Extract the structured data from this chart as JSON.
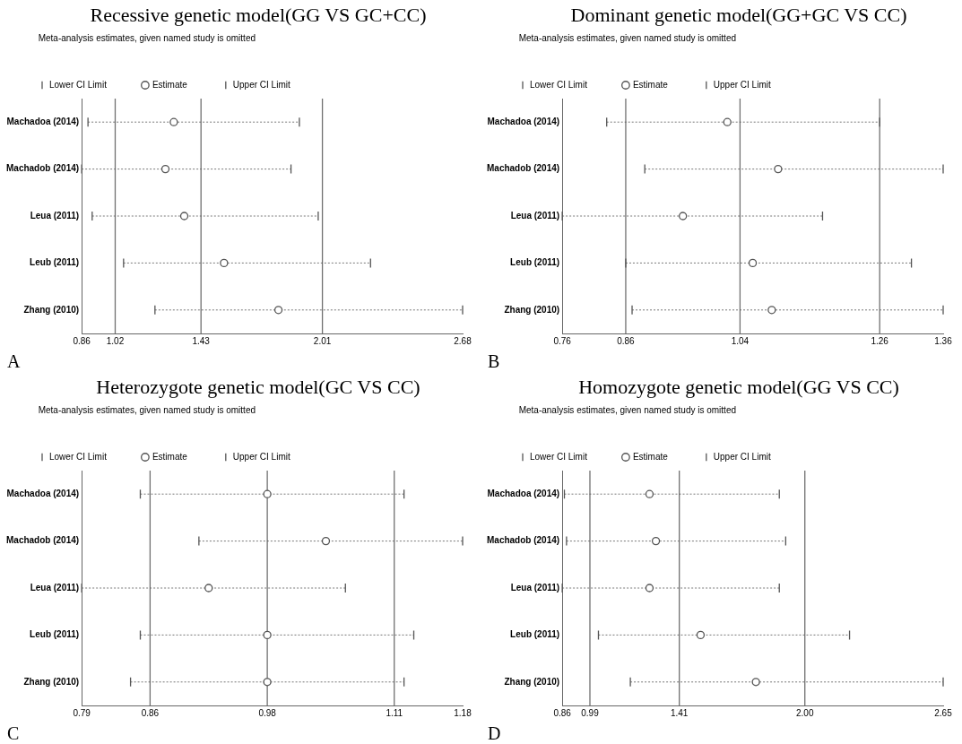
{
  "chart_data": [
    {
      "type": "scatter",
      "title": "Recessive genetic model(GG VS GC+CC)",
      "legend_title": "Meta-analysis estimates, given named study is omitted",
      "orientation": "horizontal",
      "categories": [
        "Machadoa (2014)",
        "Machadob (2014)",
        "Leua (2011)",
        "Leub (2011)",
        "Zhang (2010)"
      ],
      "series": [
        {
          "name": "Estimate",
          "color": "#555555",
          "marker": "circle",
          "values": [
            1.3,
            1.26,
            1.35,
            1.54,
            1.8
          ],
          "errors": [
            [
              0.89,
              1.9
            ],
            [
              0.86,
              1.86
            ],
            [
              0.91,
              1.99
            ],
            [
              1.06,
              2.24
            ],
            [
              1.21,
              2.68
            ]
          ]
        }
      ],
      "xlim": [
        0.86,
        2.68
      ],
      "xticks": [
        0.86,
        1.02,
        1.43,
        2.01,
        2.68
      ],
      "ref_lines": [
        {
          "axis": "x",
          "value": 1.02,
          "color": "#707070"
        },
        {
          "axis": "x",
          "value": 1.43,
          "color": "#707070"
        },
        {
          "axis": "x",
          "value": 2.01,
          "color": "#707070"
        }
      ],
      "legend": "top",
      "grid": false,
      "annotations": [
        "Lower CI Limit",
        "Upper CI Limit",
        "A"
      ]
    },
    {
      "type": "scatter",
      "title": "Dominant genetic model(GG+GC VS CC)",
      "legend_title": "Meta-analysis estimates, given named study is omitted",
      "orientation": "horizontal",
      "categories": [
        "Machadoa (2014)",
        "Machadob (2014)",
        "Leua (2011)",
        "Leub (2011)",
        "Zhang (2010)"
      ],
      "series": [
        {
          "name": "Estimate",
          "color": "#555555",
          "marker": "circle",
          "values": [
            1.02,
            1.1,
            0.95,
            1.06,
            1.09
          ],
          "errors": [
            [
              0.83,
              1.26
            ],
            [
              0.89,
              1.36
            ],
            [
              0.76,
              1.17
            ],
            [
              0.86,
              1.31
            ],
            [
              0.87,
              1.36
            ]
          ]
        }
      ],
      "xlim": [
        0.76,
        1.36
      ],
      "xticks": [
        0.76,
        0.86,
        1.04,
        1.26,
        1.36
      ],
      "ref_lines": [
        {
          "axis": "x",
          "value": 0.86,
          "color": "#707070"
        },
        {
          "axis": "x",
          "value": 1.04,
          "color": "#707070"
        },
        {
          "axis": "x",
          "value": 1.26,
          "color": "#707070"
        }
      ],
      "legend": "top",
      "grid": false,
      "annotations": [
        "Lower CI Limit",
        "Upper CI Limit",
        "B"
      ]
    },
    {
      "type": "scatter",
      "title": "Heterozygote genetic model(GC VS CC)",
      "legend_title": "Meta-analysis estimates, given named study is omitted",
      "orientation": "horizontal",
      "categories": [
        "Machadoa (2014)",
        "Machadob (2014)",
        "Leua (2011)",
        "Leub (2011)",
        "Zhang (2010)"
      ],
      "series": [
        {
          "name": "Estimate",
          "color": "#555555",
          "marker": "circle",
          "values": [
            0.98,
            1.04,
            0.92,
            0.98,
            0.98
          ],
          "errors": [
            [
              0.85,
              1.12
            ],
            [
              0.91,
              1.18
            ],
            [
              0.79,
              1.06
            ],
            [
              0.85,
              1.13
            ],
            [
              0.84,
              1.12
            ]
          ]
        }
      ],
      "xlim": [
        0.79,
        1.18
      ],
      "xticks": [
        0.79,
        0.86,
        0.98,
        1.11,
        1.18
      ],
      "ref_lines": [
        {
          "axis": "x",
          "value": 0.86,
          "color": "#707070"
        },
        {
          "axis": "x",
          "value": 0.98,
          "color": "#707070"
        },
        {
          "axis": "x",
          "value": 1.11,
          "color": "#707070"
        }
      ],
      "legend": "top",
      "grid": false,
      "annotations": [
        "Lower CI Limit",
        "Upper CI Limit",
        "C"
      ]
    },
    {
      "type": "scatter",
      "title": "Homozygote genetic model(GG VS CC)",
      "legend_title": "Meta-analysis estimates, given named study is omitted",
      "orientation": "horizontal",
      "categories": [
        "Machadoa (2014)",
        "Machadob (2014)",
        "Leua (2011)",
        "Leub (2011)",
        "Zhang (2010)"
      ],
      "series": [
        {
          "name": "Estimate",
          "color": "#555555",
          "marker": "circle",
          "values": [
            1.27,
            1.3,
            1.27,
            1.51,
            1.77
          ],
          "errors": [
            [
              0.87,
              1.88
            ],
            [
              0.88,
              1.91
            ],
            [
              0.86,
              1.88
            ],
            [
              1.03,
              2.21
            ],
            [
              1.18,
              2.65
            ]
          ]
        }
      ],
      "xlim": [
        0.86,
        2.65
      ],
      "xticks": [
        0.86,
        0.99,
        1.41,
        {
          "value": 2,
          "label": "2.00"
        },
        2.65
      ],
      "ref_lines": [
        {
          "axis": "x",
          "value": 0.99,
          "color": "#707070"
        },
        {
          "axis": "x",
          "value": 1.41,
          "color": "#707070"
        },
        {
          "axis": "x",
          "value": 2,
          "color": "#707070"
        }
      ],
      "legend": "top",
      "grid": false,
      "annotations": [
        "Lower CI Limit",
        "Upper CI Limit",
        "D"
      ]
    }
  ]
}
